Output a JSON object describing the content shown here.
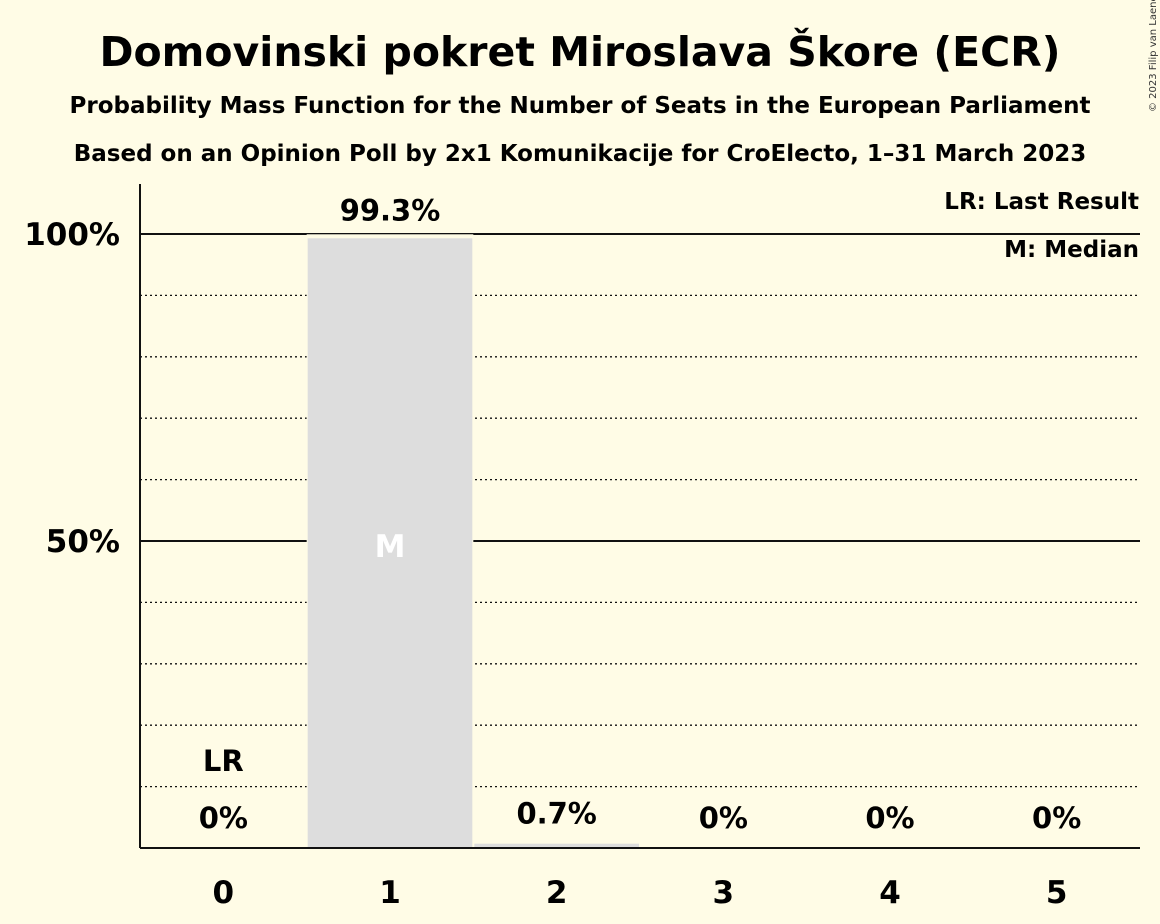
{
  "chart_data": {
    "type": "bar",
    "title": "Domovinski pokret Miroslava Škore (ECR)",
    "subtitle1": "Probability Mass Function for the Number of Seats in the European Parliament",
    "subtitle2": "Based on an Opinion Poll by 2x1 Komunikacije for CroElecto, 1–31 March 2023",
    "categories": [
      "0",
      "1",
      "2",
      "3",
      "4",
      "5"
    ],
    "values": [
      0,
      99.3,
      0.7,
      0,
      0,
      0
    ],
    "value_labels": [
      "0%",
      "99.3%",
      "0.7%",
      "0%",
      "0%",
      "0%"
    ],
    "ylim": [
      0,
      100
    ],
    "yticks": [
      {
        "value": 50,
        "label": "50%"
      },
      {
        "value": 100,
        "label": "100%"
      }
    ],
    "minor_gridlines": [
      10,
      20,
      30,
      40,
      60,
      70,
      80,
      90
    ],
    "last_result": {
      "category": "0",
      "label": "LR"
    },
    "median": {
      "category": "1",
      "label": "M"
    },
    "legend": [
      "LR: Last Result",
      "M: Median"
    ],
    "legend_position": "top-right",
    "copyright": "© 2023 Filip van Laenen",
    "colors": {
      "background": "#FFFCE6",
      "bar": "#DDDDDD",
      "text": "#111111",
      "median": "#FFFFFF"
    }
  }
}
